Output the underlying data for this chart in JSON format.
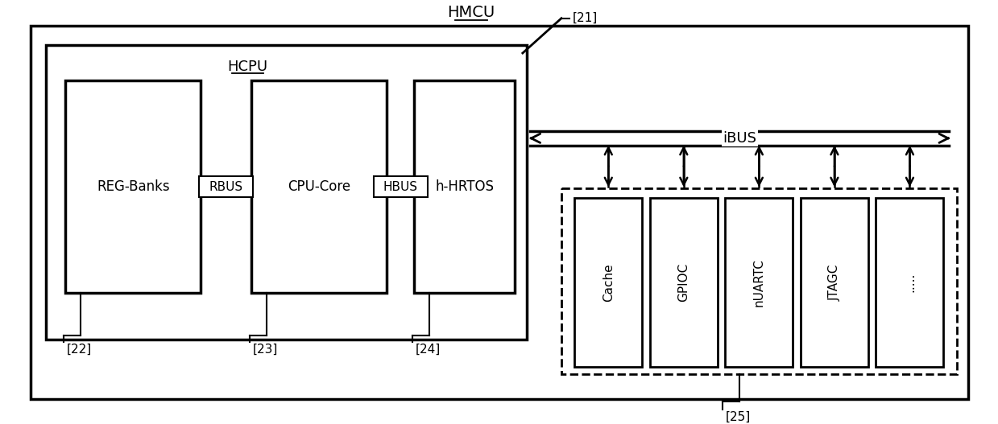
{
  "bg_color": "#ffffff",
  "border_color": "#000000",
  "title_hmcu": "HMCU",
  "title_hcpu": "HCPU",
  "label_reg_banks": "REG-Banks",
  "label_cpu_core": "CPU-Core",
  "label_h_hrtos": "h-HRTOS",
  "label_rbus": "RBUS",
  "label_hbus": "HBUS",
  "label_ibus": "iBUS",
  "label_21": "[21]",
  "label_22": "[22]",
  "label_23": "[23]",
  "label_24": "[24]",
  "label_25": "[25]",
  "ip_labels": [
    "Cache",
    "GPIOC",
    "nUARTC",
    "JTAGC",
    "....."
  ]
}
